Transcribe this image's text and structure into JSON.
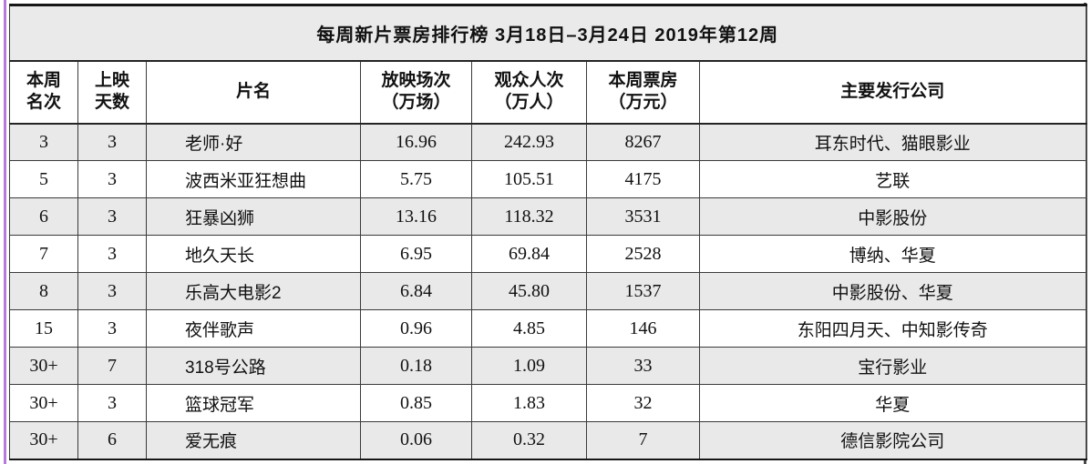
{
  "title": "每周新片票房排行榜 3月18日–3月24日 2019年第12周",
  "table": {
    "columns": [
      {
        "line1": "本周",
        "line2": "名次"
      },
      {
        "line1": "上映",
        "line2": "天数"
      },
      {
        "line1": "片名",
        "line2": ""
      },
      {
        "line1": "放映场次",
        "line2": "（万场）"
      },
      {
        "line1": "观众人次",
        "line2": "（万人）"
      },
      {
        "line1": "本周票房",
        "line2": "（万元）"
      },
      {
        "line1": "主要发行公司",
        "line2": ""
      }
    ],
    "rows": [
      [
        "3",
        "3",
        "老师·好",
        "16.96",
        "242.93",
        "8267",
        "耳东时代、猫眼影业"
      ],
      [
        "5",
        "3",
        "波西米亚狂想曲",
        "5.75",
        "105.51",
        "4175",
        "艺联"
      ],
      [
        "6",
        "3",
        "狂暴凶狮",
        "13.16",
        "118.32",
        "3531",
        "中影股份"
      ],
      [
        "7",
        "3",
        "地久天长",
        "6.95",
        "69.84",
        "2528",
        "博纳、华夏"
      ],
      [
        "8",
        "3",
        "乐高大电影2",
        "6.84",
        "45.80",
        "1537",
        "中影股份、华夏"
      ],
      [
        "15",
        "3",
        "夜伴歌声",
        "0.96",
        "4.85",
        "146",
        "东阳四月天、中知影传奇"
      ],
      [
        "30+",
        "7",
        "318号公路",
        "0.18",
        "1.09",
        "33",
        "宝行影业"
      ],
      [
        "30+",
        "3",
        "篮球冠军",
        "0.85",
        "1.83",
        "32",
        "华夏"
      ],
      [
        "30+",
        "6",
        "爱无痕",
        "0.06",
        "0.32",
        "7",
        "德信影院公司"
      ]
    ]
  },
  "colors": {
    "row_shade": "#e9e9e9",
    "row_white": "#ffffff",
    "title_bg": "#eaeaea",
    "border": "#3a3a3a",
    "left_edge_line": "#b87bdb",
    "right_edge_line": "#4a4a4a"
  }
}
